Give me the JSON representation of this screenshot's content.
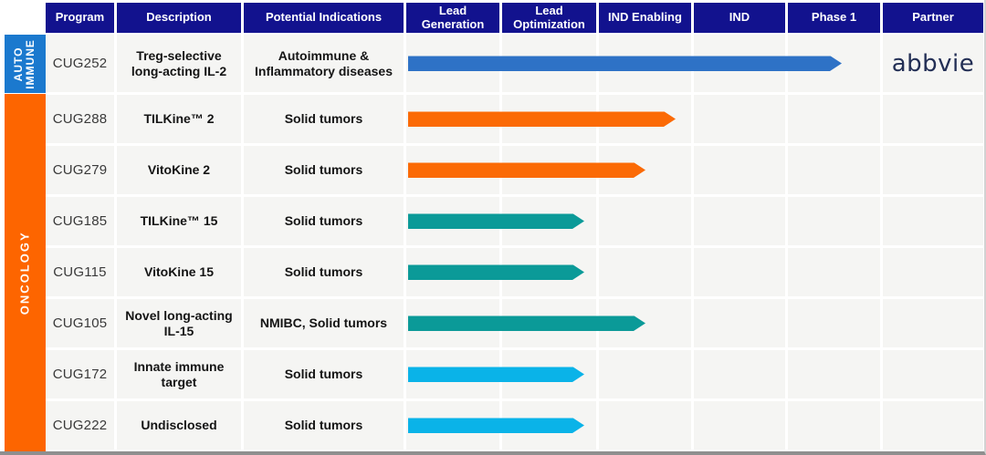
{
  "header": {
    "columns": [
      "Program",
      "Description",
      "Potential Indications",
      "Lead Generation",
      "Lead Optimization",
      "IND Enabling",
      "IND",
      "Phase 1",
      "Partner"
    ]
  },
  "sidebar": {
    "groups": [
      {
        "label": "AUTO\nIMMUNE",
        "color": "#1b79ce"
      },
      {
        "label": "ONCOLOGY",
        "color": "#fd6500"
      }
    ]
  },
  "colors": {
    "header_bg": "#12128e",
    "row_bg": "#f5f5f3",
    "arrow_blue": "#2e72c6",
    "arrow_orange": "#fb6a05",
    "arrow_teal": "#0b9a98",
    "arrow_cyan": "#0ab3e8",
    "partner_logo_color": "#232f55"
  },
  "chart_data": {
    "type": "table",
    "subtype": "pipeline_gantt",
    "phase_columns": [
      "Lead Generation",
      "Lead Optimization",
      "IND Enabling",
      "IND",
      "Phase 1"
    ],
    "progress_unit_note": "1.0 unit = width of one phase column, measured from start of Lead Generation",
    "categories": [
      "CUG252",
      "CUG288",
      "CUG279",
      "CUG185",
      "CUG115",
      "CUG105",
      "CUG172",
      "CUG222"
    ],
    "values": [
      4.57,
      2.82,
      2.5,
      1.86,
      1.86,
      2.5,
      1.86,
      1.86
    ],
    "rows": [
      {
        "program": "CUG252",
        "description": "Treg-selective long-acting IL-2",
        "indications": "Autoimmune & Inflammatory diseases",
        "group": "AUTO IMMUNE",
        "progress_units": 4.57,
        "arrow_color_key": "arrow_blue",
        "partner": "abbvie"
      },
      {
        "program": "CUG288",
        "description": "TILKine™ 2",
        "indications": "Solid tumors",
        "group": "ONCOLOGY",
        "progress_units": 2.82,
        "arrow_color_key": "arrow_orange",
        "partner": ""
      },
      {
        "program": "CUG279",
        "description": "VitoKine 2",
        "indications": "Solid tumors",
        "group": "ONCOLOGY",
        "progress_units": 2.5,
        "arrow_color_key": "arrow_orange",
        "partner": ""
      },
      {
        "program": "CUG185",
        "description": "TILKine™ 15",
        "indications": "Solid tumors",
        "group": "ONCOLOGY",
        "progress_units": 1.86,
        "arrow_color_key": "arrow_teal",
        "partner": ""
      },
      {
        "program": "CUG115",
        "description": "VitoKine 15",
        "indications": "Solid tumors",
        "group": "ONCOLOGY",
        "progress_units": 1.86,
        "arrow_color_key": "arrow_teal",
        "partner": ""
      },
      {
        "program": "CUG105",
        "description": "Novel long-acting IL-15",
        "indications": "NMIBC, Solid tumors",
        "group": "ONCOLOGY",
        "progress_units": 2.5,
        "arrow_color_key": "arrow_teal",
        "partner": ""
      },
      {
        "program": "CUG172",
        "description": "Innate immune target",
        "indications": "Solid tumors",
        "group": "ONCOLOGY",
        "progress_units": 1.86,
        "arrow_color_key": "arrow_cyan",
        "partner": ""
      },
      {
        "program": "CUG222",
        "description": "Undisclosed",
        "indications": "Solid tumors",
        "group": "ONCOLOGY",
        "progress_units": 1.86,
        "arrow_color_key": "arrow_cyan",
        "partner": ""
      }
    ]
  }
}
